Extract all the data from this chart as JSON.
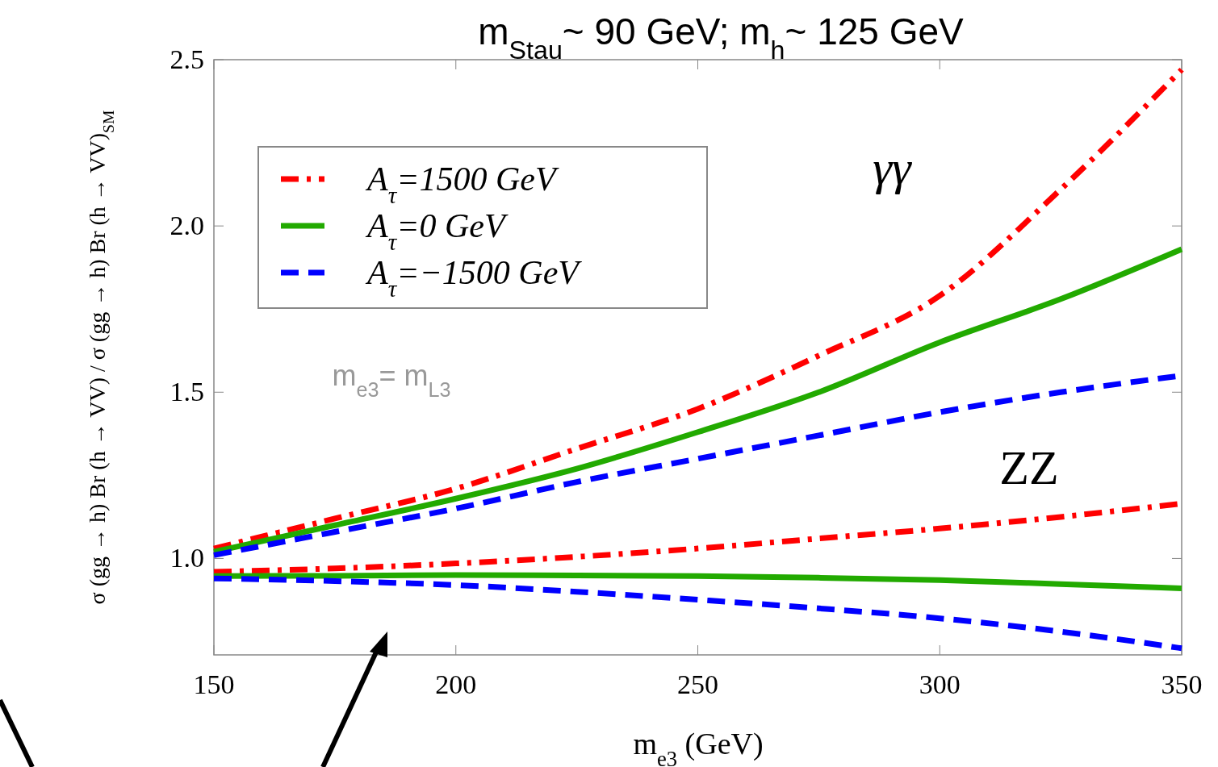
{
  "chart_data": {
    "type": "line",
    "title": "m$_{Stau}$~ 90 GeV;  m$_{h}$~ 125 GeV",
    "xlabel": "m$_{e3}$ (GeV)",
    "ylabel": "σ (gg → h) Br (h → VV) / σ (gg → h) Br (h → VV)$_{SM}$",
    "x": [
      150,
      175,
      200,
      225,
      250,
      275,
      300,
      325,
      350
    ],
    "xlim": [
      150,
      350
    ],
    "xticks": [
      150,
      200,
      250,
      300,
      350
    ],
    "ylim": [
      0.71,
      2.5
    ],
    "yticks": [
      {
        "value": 1,
        "label": "1.0"
      },
      {
        "value": 1.5,
        "label": "1.5"
      },
      {
        "value": 2,
        "label": "2.0"
      },
      {
        "value": 2.5,
        "label": "2.5"
      }
    ],
    "grid": false,
    "legend": "top left",
    "series": [
      {
        "name": "A$_{τ}$=1500 GeV",
        "color": "#ff0000",
        "line_style": "dashdot",
        "values": [
          1.03,
          1.12,
          1.21,
          1.33,
          1.45,
          1.61,
          1.79,
          2.11,
          2.47
        ]
      },
      {
        "name": "A$_{τ}$=0 GeV",
        "color": "#22aa00",
        "line_style": "solid",
        "values": [
          1.02,
          1.1,
          1.18,
          1.27,
          1.38,
          1.5,
          1.65,
          1.78,
          1.93
        ]
      },
      {
        "name": "A$_{τ}$=−1500 GeV",
        "color": "#0000ff",
        "line_style": "dashed",
        "values": [
          1.01,
          1.08,
          1.15,
          1.23,
          1.3,
          1.37,
          1.44,
          1.5,
          1.55
        ]
      },
      {
        "color": "#ff0000",
        "line_style": "dashdot",
        "values": [
          0.96,
          0.97,
          0.985,
          1.005,
          1.03,
          1.06,
          1.09,
          1.125,
          1.165
        ]
      },
      {
        "color": "#22aa00",
        "line_style": "solid",
        "values": [
          0.947,
          0.948,
          0.95,
          0.949,
          0.947,
          0.942,
          0.935,
          0.923,
          0.91
        ]
      },
      {
        "color": "#0000ff",
        "line_style": "dashed",
        "values": [
          0.94,
          0.932,
          0.92,
          0.9,
          0.876,
          0.85,
          0.82,
          0.78,
          0.73
        ]
      }
    ],
    "annotations": [
      "γγ",
      "ZZ",
      "m$_{e3}$= m$_{L3}$"
    ]
  }
}
